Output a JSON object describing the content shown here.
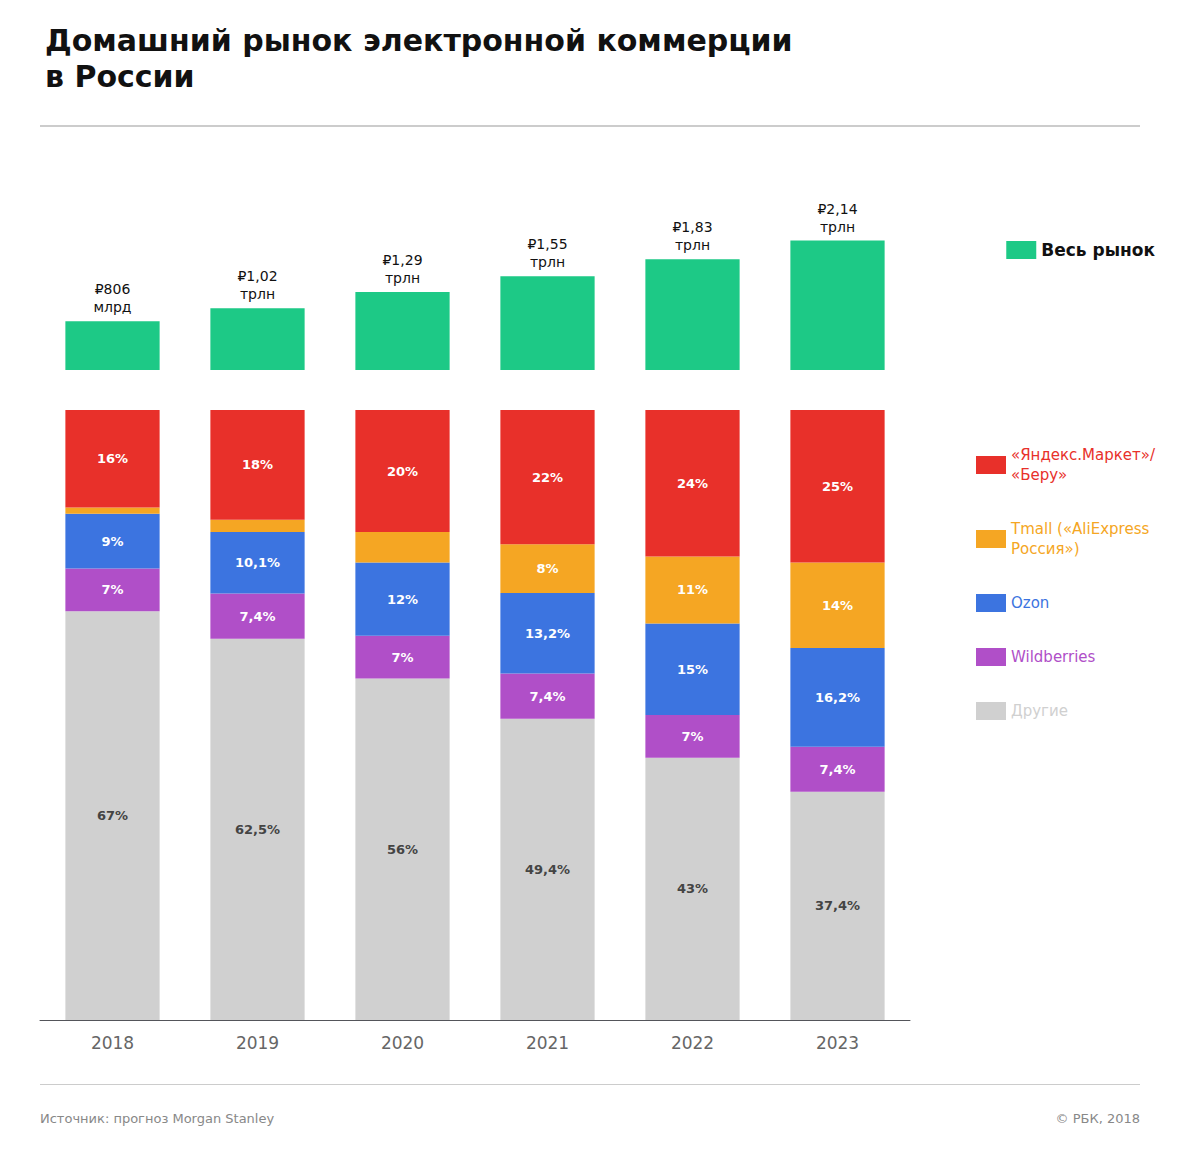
{
  "chart_data": [
    {
      "type": "bar",
      "title": "Домашний рынок электронной коммерции",
      "subtitle": "в России",
      "categories": [
        "2018",
        "2019",
        "2020",
        "2021",
        "2022",
        "2023"
      ],
      "series": [
        {
          "name": "Весь рынок",
          "color": "#1DC986",
          "values": [
            0.806,
            1.02,
            1.29,
            1.55,
            1.83,
            2.14
          ],
          "value_labels": [
            "₽806\nмлрд",
            "₽1,02\nтрлн",
            "₽1,29\nтрлн",
            "₽1,55\nтрлн",
            "₽1,83\nтрлн",
            "₽2,14\nтрлн"
          ]
        }
      ],
      "ylim": [
        0,
        3.638
      ],
      "data_labels": true,
      "tick_labels": false,
      "grid": false,
      "legend": "right"
    },
    {
      "type": "bar",
      "categories": [
        "2018",
        "2019",
        "2020",
        "2021",
        "2022",
        "2023"
      ],
      "series": [
        {
          "name": "Другие",
          "color": "#d0d0d0",
          "values": [
            67.0,
            62.5,
            56.0,
            49.4,
            43.0,
            37.4
          ],
          "value_labels": [
            "67%",
            "62,5%",
            "56%",
            "49,4%",
            "43%",
            "37,4%"
          ]
        },
        {
          "name": "Wildberries",
          "color": "#b04fc8",
          "values": [
            7.0,
            7.4,
            7.0,
            7.4,
            7.0,
            7.4
          ],
          "value_labels": [
            "7%",
            "7,4%",
            "7%",
            "7,4%",
            "7%",
            "7,4%"
          ]
        },
        {
          "name": "Ozon",
          "color": "#3c74e0",
          "values": [
            9.0,
            10.1,
            12.0,
            13.2,
            15.0,
            16.2
          ],
          "value_labels": [
            "9%",
            "10,1%",
            "12%",
            "13,2%",
            "15%",
            "16,2%"
          ]
        },
        {
          "name": "Tmall («AliExpress\nРоссия»)",
          "color": "#f5a623",
          "values": [
            1.0,
            2.0,
            5.0,
            8.0,
            11.0,
            14.0
          ],
          "value_labels": [
            null,
            null,
            null,
            "8%",
            "11%",
            "14%"
          ]
        },
        {
          "name": "«Яндекс.Маркет»/\n«Беру»",
          "color": "#e8302a",
          "values": [
            16.0,
            18.0,
            20.0,
            22.0,
            24.0,
            25.0
          ],
          "value_labels": [
            "16%",
            "18%",
            "20%",
            "22%",
            "24%",
            "25%"
          ]
        }
      ],
      "ylim": [
        0,
        100
      ],
      "stacked": true,
      "data_labels": true,
      "tick_labels": "x",
      "grid": false,
      "legend": "right",
      "annotations": [
        "Источник: прогноз Morgan Stanley",
        "© РБК, 2018"
      ]
    }
  ]
}
